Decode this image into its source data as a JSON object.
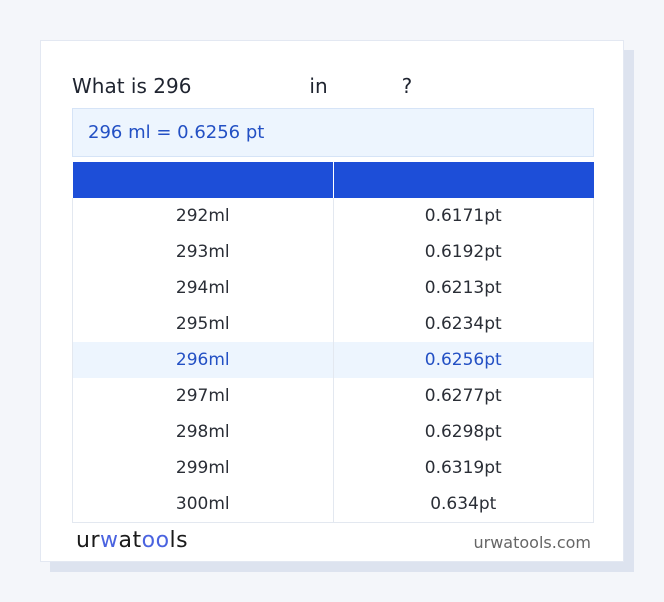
{
  "title": {
    "prefix": "What is 296",
    "mid": "in",
    "suffix": "?"
  },
  "result": "296 ml = 0.6256 pt",
  "table": {
    "headers": [
      "",
      ""
    ],
    "rows": [
      [
        "292ml",
        "0.6171pt"
      ],
      [
        "293ml",
        "0.6192pt"
      ],
      [
        "294ml",
        "0.6213pt"
      ],
      [
        "295ml",
        "0.6234pt"
      ],
      [
        "296ml",
        "0.6256pt"
      ],
      [
        "297ml",
        "0.6277pt"
      ],
      [
        "298ml",
        "0.6298pt"
      ],
      [
        "299ml",
        "0.6319pt"
      ],
      [
        "300ml",
        "0.634pt"
      ]
    ],
    "highlighted_row": 4
  },
  "footer": {
    "logo": "urwatools",
    "site": "urwatools.com"
  },
  "colors": {
    "accent": "#1d4ed8",
    "highlight_bg": "#edf5fe"
  }
}
